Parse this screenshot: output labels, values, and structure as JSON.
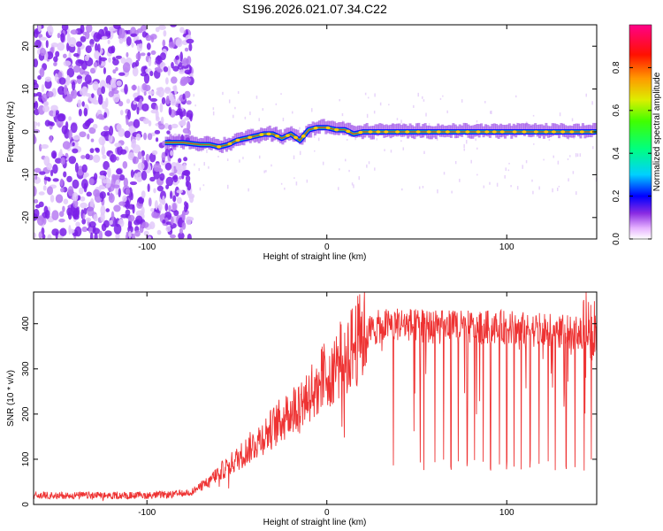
{
  "figure_title": "S196.2026.021.07.34.C22",
  "colors": {
    "snr_line": "#ee3333",
    "spectrum_cloud": "#8833ee",
    "colorscale": [
      "#ffffff",
      "#dd88ff",
      "#7700ff",
      "#0000ff",
      "#00ccff",
      "#00ff66",
      "#ddee00",
      "#ff8800",
      "#ff0000",
      "#ff0088"
    ]
  },
  "chart_data": [
    {
      "type": "heatmap",
      "title": "S196.2026.021.07.34.C22",
      "xlabel": "Height of straight line (km)",
      "ylabel": "Frequency (Hz)",
      "xlim": [
        -163,
        150
      ],
      "ylim": [
        -25,
        25
      ],
      "xticks": [
        -100,
        0,
        100
      ],
      "xtick_labels": [
        "-100",
        "0",
        "100"
      ],
      "yticks": [
        -20,
        -10,
        0,
        10,
        20
      ],
      "ytick_labels": [
        "-20",
        "-10",
        "0",
        "10",
        "20"
      ],
      "noise_region_km": [
        -163,
        -75
      ],
      "colorbar": {
        "label": "Normalized spectral amplitude",
        "range": [
          0,
          1
        ],
        "ticks": [
          0.0,
          0.2,
          0.4,
          0.6,
          0.8
        ],
        "tick_labels": [
          "0.0",
          "0.2",
          "0.4",
          "0.6",
          "0.8"
        ]
      },
      "ridge": {
        "x": [
          -90,
          -80,
          -70,
          -65,
          -60,
          -55,
          -50,
          -45,
          -40,
          -35,
          -30,
          -25,
          -20,
          -15,
          -10,
          -5,
          0,
          5,
          10,
          15,
          20,
          30,
          40,
          60,
          80,
          100,
          120,
          150
        ],
        "y": [
          -2.5,
          -2.5,
          -3,
          -3,
          -3.5,
          -3,
          -2,
          -1.5,
          -1,
          -0.5,
          -0.5,
          -1.5,
          -0.5,
          -2,
          0.5,
          1,
          1,
          0.5,
          0.5,
          -0.5,
          0,
          0,
          0,
          0,
          0,
          0,
          0,
          0
        ]
      }
    },
    {
      "type": "line",
      "xlabel": "Height of straight line (km)",
      "ylabel": "SNR (10 * v/v)",
      "xlim": [
        -163,
        150
      ],
      "ylim": [
        0,
        470
      ],
      "xticks": [
        -100,
        0,
        100
      ],
      "xtick_labels": [
        "-100",
        "0",
        "100"
      ],
      "yticks": [
        0,
        100,
        200,
        300,
        400
      ],
      "ytick_labels": [
        "0",
        "100",
        "200",
        "300",
        "400"
      ],
      "series": [
        {
          "name": "SNR",
          "x": [
            -163,
            -140,
            -120,
            -100,
            -85,
            -75,
            -68,
            -60,
            -50,
            -40,
            -30,
            -20,
            -10,
            0,
            10,
            20,
            30,
            40,
            60,
            80,
            100,
            120,
            150
          ],
          "y": [
            20,
            20,
            20,
            20,
            22,
            28,
            45,
            70,
            100,
            135,
            170,
            205,
            245,
            290,
            330,
            375,
            395,
            400,
            392,
            392,
            392,
            385,
            378
          ]
        }
      ],
      "dropouts_km": [
        37,
        52,
        54,
        60,
        65,
        69,
        73,
        78,
        82,
        87,
        91,
        96,
        100,
        104,
        108,
        113,
        118,
        123,
        127,
        133,
        138,
        143,
        147
      ]
    }
  ]
}
